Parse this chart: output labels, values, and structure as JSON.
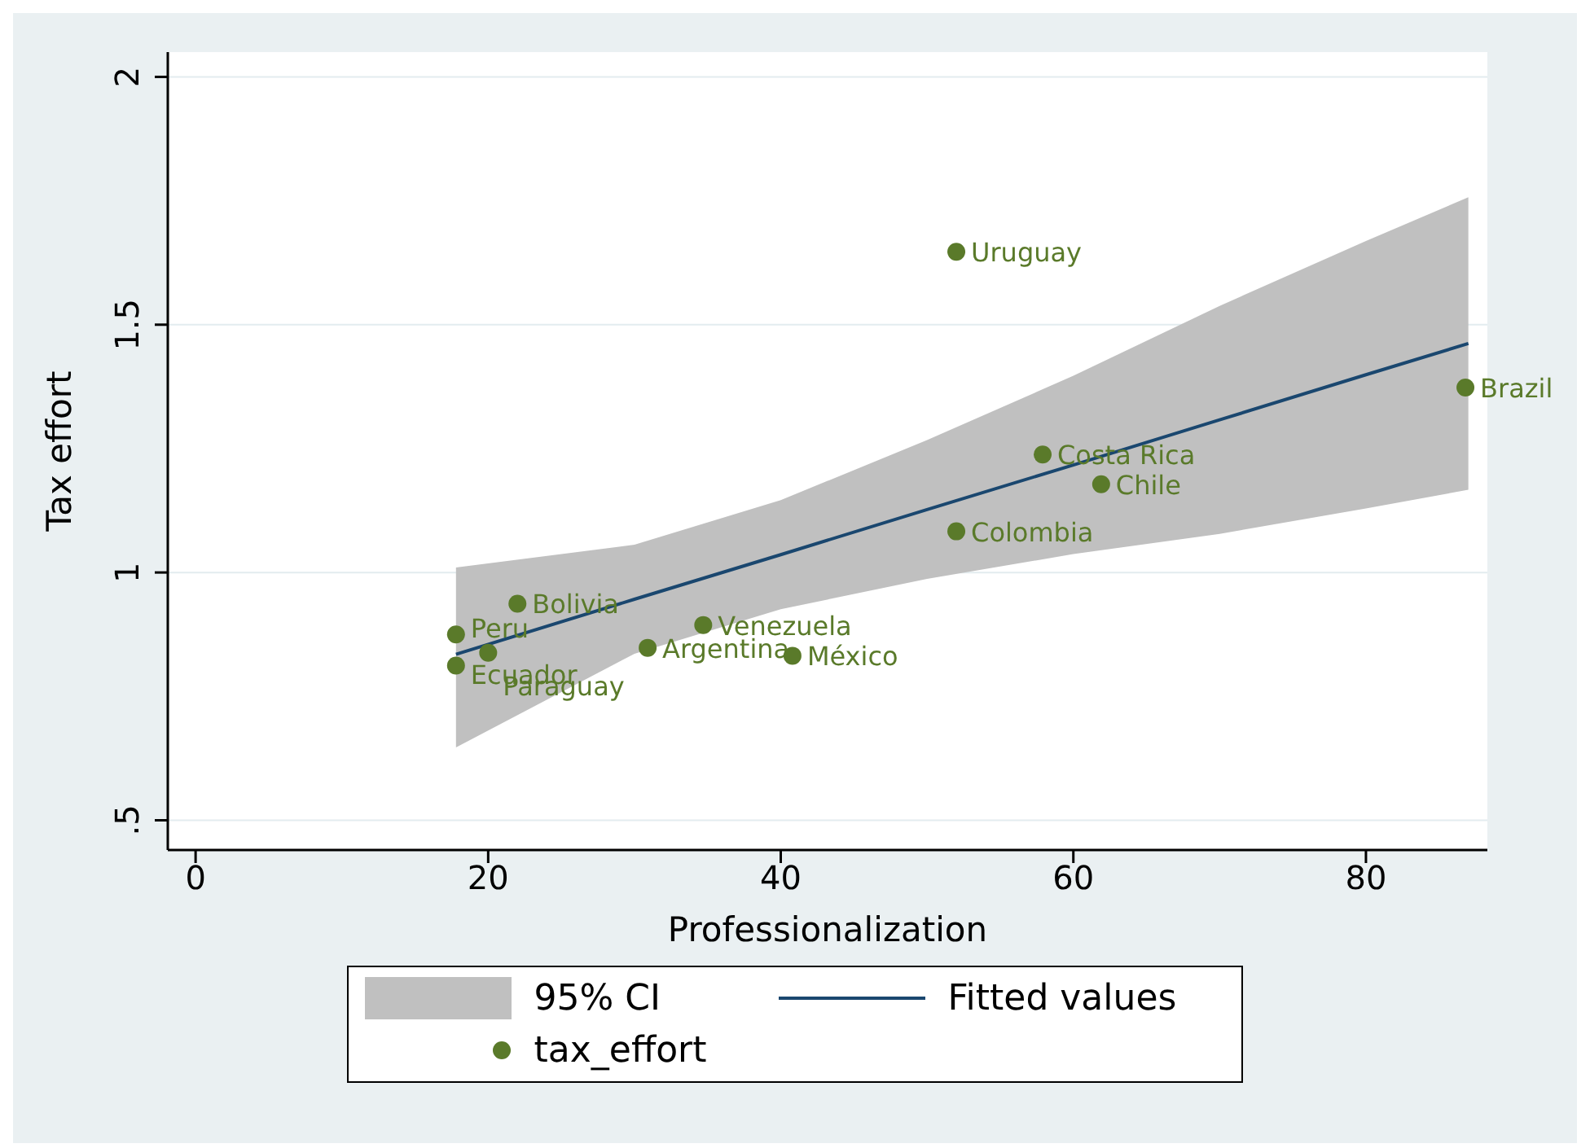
{
  "chart_data": {
    "type": "scatter",
    "xlabel": "Professionalization",
    "ylabel": "Tax effort",
    "xlim": [
      -1.9,
      88.3
    ],
    "xticks": [
      0,
      20,
      40,
      60,
      80
    ],
    "ylim": [
      0.44,
      2.05
    ],
    "yticks": [
      {
        "value": 0.5,
        "label": ".5"
      },
      1,
      1.5,
      2
    ],
    "grid": "y",
    "legend": "bottom",
    "marker": "circle",
    "series": [
      {
        "type": "line",
        "name": "Fitted values",
        "color": "#1a476f",
        "marker": "none",
        "x": [
          17.8,
          30,
          40,
          50,
          60,
          70,
          80,
          87
        ],
        "values": [
          0.835,
          0.946,
          1.036,
          1.127,
          1.217,
          1.308,
          1.399,
          1.462
        ],
        "lower": [
          0.647,
          0.836,
          0.926,
          0.987,
          1.037,
          1.078,
          1.129,
          1.167
        ],
        "upper": [
          1.01,
          1.056,
          1.146,
          1.267,
          1.397,
          1.538,
          1.669,
          1.757
        ]
      },
      {
        "type": "scatter",
        "name": "tax_effort",
        "color": "#5a7a2a",
        "x": [
          52.0,
          86.8,
          57.9,
          61.9,
          52.0,
          22.0,
          17.8,
          20.0,
          17.8,
          34.7,
          30.9,
          40.8
        ],
        "values": [
          1.647,
          1.373,
          1.238,
          1.178,
          1.083,
          0.937,
          0.875,
          0.838,
          0.812,
          0.894,
          0.848,
          0.832
        ]
      }
    ],
    "annotations": [
      "95% CI",
      {
        "text": "Uruguay",
        "x": 52.0,
        "y": 1.647
      },
      {
        "text": "Brazil",
        "x": 86.8,
        "y": 1.373
      },
      {
        "text": "Costa Rica",
        "x": 57.9,
        "y": 1.238
      },
      {
        "text": "Chile",
        "x": 61.9,
        "y": 1.178
      },
      {
        "text": "Colombia",
        "x": 52.0,
        "y": 1.083
      },
      {
        "text": "Bolivia",
        "x": 22.0,
        "y": 0.937
      },
      {
        "text": "Peru",
        "x": 17.8,
        "y": 0.875
      },
      {
        "text": "Paraguay",
        "x": 20.0,
        "y": 0.838
      },
      {
        "text": "Ecuador",
        "x": 17.8,
        "y": 0.812
      },
      {
        "text": "Venezuela",
        "x": 34.7,
        "y": 0.894
      },
      {
        "text": "Argentina",
        "x": 30.9,
        "y": 0.848
      },
      {
        "text": "México",
        "x": 40.8,
        "y": 0.832
      }
    ]
  }
}
